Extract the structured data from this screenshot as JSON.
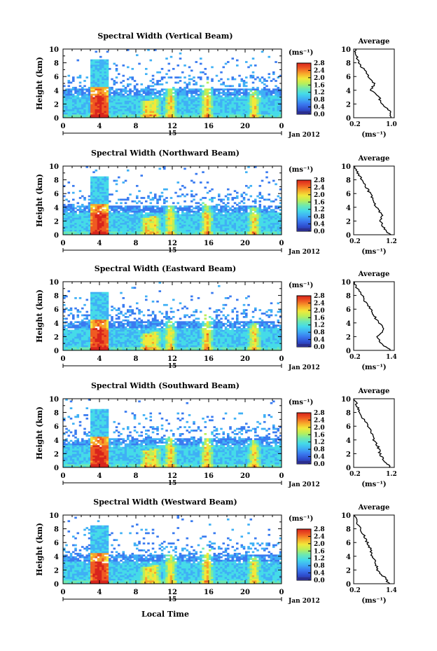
{
  "figure": {
    "xlabel": "Local Time",
    "date_label": "Jan 2012",
    "day_label": "15",
    "colorbar_unit": "(ms⁻¹)",
    "profile_title": "Average",
    "profile_xlabel": "(ms⁻¹)"
  },
  "colormap": [
    "#2b2f8f",
    "#2f4fd0",
    "#3a7bf0",
    "#3fb0f5",
    "#45dbe8",
    "#6ee8b0",
    "#b8ef5a",
    "#f2e83a",
    "#f7a42a",
    "#ef5a22",
    "#d8241c"
  ],
  "chart_data": [
    {
      "type": "heatmap",
      "title": "Spectral Width (Vertical Beam)",
      "ylabel": "Height (km)",
      "xlim": [
        0,
        24
      ],
      "ylim": [
        0,
        10
      ],
      "xticks": [
        "0",
        "4",
        "8",
        "12",
        "16",
        "20",
        "0"
      ],
      "yticks": [
        "0",
        "2",
        "4",
        "6",
        "8",
        "10"
      ],
      "colorbar": {
        "range": [
          0.0,
          2.8
        ],
        "ticks": [
          "0.0",
          "0.4",
          "0.8",
          "1.2",
          "1.6",
          "2.0",
          "2.4",
          "2.8"
        ]
      },
      "profile": {
        "xlim": [
          0.2,
          1.0
        ],
        "xticks": [
          "0.2",
          "1.0"
        ],
        "heights": [
          0,
          1,
          2,
          3,
          4,
          5,
          6,
          7,
          8,
          9,
          10
        ],
        "values": [
          0.95,
          0.9,
          0.75,
          0.7,
          0.55,
          0.6,
          0.5,
          0.4,
          0.3,
          0.25,
          0.22
        ]
      }
    },
    {
      "type": "heatmap",
      "title": "Spectral Width (Northward Beam)",
      "ylabel": "Height (km)",
      "xlim": [
        0,
        24
      ],
      "ylim": [
        0,
        10
      ],
      "xticks": [
        "0",
        "4",
        "8",
        "12",
        "16",
        "20",
        "0"
      ],
      "yticks": [
        "0",
        "2",
        "4",
        "6",
        "8",
        "10"
      ],
      "colorbar": {
        "range": [
          0.0,
          2.8
        ],
        "ticks": [
          "0.0",
          "0.4",
          "0.8",
          "1.2",
          "1.6",
          "2.0",
          "2.4",
          "2.8"
        ]
      },
      "profile": {
        "xlim": [
          0.2,
          1.2
        ],
        "xticks": [
          "0.2",
          "1.2"
        ],
        "heights": [
          0,
          1,
          2,
          3,
          4,
          5,
          6,
          7,
          8,
          9,
          10
        ],
        "values": [
          1.1,
          0.95,
          0.85,
          0.9,
          0.75,
          0.7,
          0.6,
          0.5,
          0.4,
          0.3,
          0.22
        ]
      }
    },
    {
      "type": "heatmap",
      "title": "Spectral Width (Eastward Beam)",
      "ylabel": "Height (km)",
      "xlim": [
        0,
        24
      ],
      "ylim": [
        0,
        10
      ],
      "xticks": [
        "0",
        "4",
        "8",
        "12",
        "16",
        "20",
        "0"
      ],
      "yticks": [
        "0",
        "2",
        "4",
        "6",
        "8",
        "10"
      ],
      "colorbar": {
        "range": [
          0.0,
          2.8
        ],
        "ticks": [
          "0.0",
          "0.4",
          "0.8",
          "1.2",
          "1.6",
          "2.0",
          "2.4",
          "2.8"
        ]
      },
      "profile": {
        "xlim": [
          0.2,
          1.4
        ],
        "xticks": [
          "0.2",
          "1.4"
        ],
        "heights": [
          0,
          1,
          2,
          3,
          4,
          5,
          6,
          7,
          8,
          9,
          10
        ],
        "values": [
          1.3,
          1.0,
          0.9,
          1.1,
          0.95,
          0.8,
          0.7,
          0.55,
          0.45,
          0.3,
          0.22
        ]
      }
    },
    {
      "type": "heatmap",
      "title": "Spectral Width (Southward Beam)",
      "ylabel": "Height (km)",
      "xlim": [
        0,
        24
      ],
      "ylim": [
        0,
        10
      ],
      "xticks": [
        "0",
        "4",
        "8",
        "12",
        "16",
        "20",
        "0"
      ],
      "yticks": [
        "0",
        "2",
        "4",
        "6",
        "8",
        "10"
      ],
      "colorbar": {
        "range": [
          0.0,
          2.8
        ],
        "ticks": [
          "0.0",
          "0.4",
          "0.8",
          "1.2",
          "1.6",
          "2.0",
          "2.4",
          "2.8"
        ]
      },
      "profile": {
        "xlim": [
          0.2,
          1.2
        ],
        "xticks": [
          "0.2",
          "1.2"
        ],
        "heights": [
          0,
          1,
          2,
          3,
          4,
          5,
          6,
          7,
          8,
          9,
          10
        ],
        "values": [
          1.1,
          0.95,
          0.85,
          0.8,
          0.7,
          0.65,
          0.55,
          0.45,
          0.35,
          0.28,
          0.22
        ]
      }
    },
    {
      "type": "heatmap",
      "title": "Spectral Width (Westward Beam)",
      "ylabel": "Height (km)",
      "xlim": [
        0,
        24
      ],
      "ylim": [
        0,
        10
      ],
      "xticks": [
        "0",
        "4",
        "8",
        "12",
        "16",
        "20",
        "0"
      ],
      "yticks": [
        "0",
        "2",
        "4",
        "6",
        "8",
        "10"
      ],
      "colorbar": {
        "range": [
          0.0,
          2.8
        ],
        "ticks": [
          "0.0",
          "0.4",
          "0.8",
          "1.2",
          "1.6",
          "2.0",
          "2.4",
          "2.8"
        ]
      },
      "profile": {
        "xlim": [
          0.2,
          1.4
        ],
        "xticks": [
          "0.2",
          "1.4"
        ],
        "heights": [
          0,
          1,
          2,
          3,
          4,
          5,
          6,
          7,
          8,
          9,
          10
        ],
        "values": [
          1.25,
          1.1,
          0.9,
          0.85,
          0.75,
          0.7,
          0.6,
          0.5,
          0.4,
          0.3,
          0.22
        ]
      }
    }
  ]
}
